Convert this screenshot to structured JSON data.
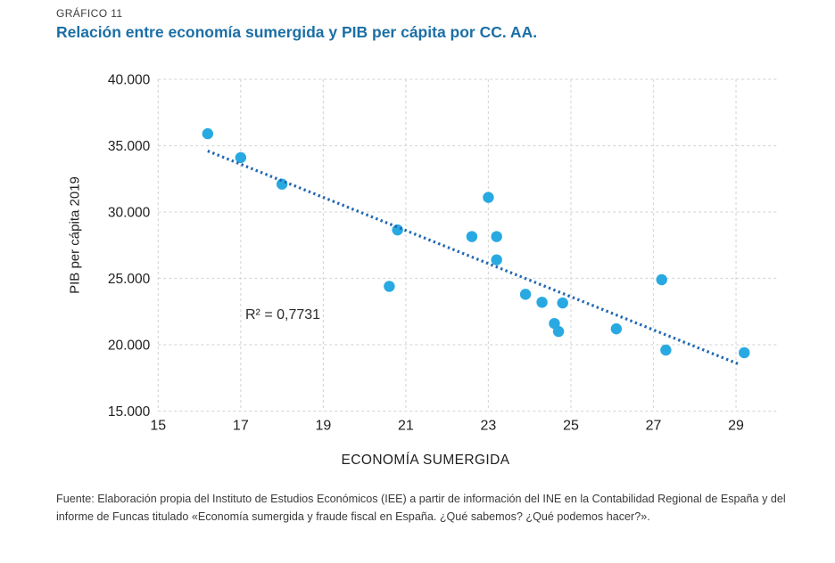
{
  "header": {
    "kicker": "GRÁFICO 11",
    "title": "Relación entre economía sumergida y PIB per cápita por CC. AA."
  },
  "chart_data": {
    "type": "scatter",
    "title": "Relación entre economía sumergida y PIB per cápita por CC. AA.",
    "xlabel": "ECONOMÍA SUMERGIDA",
    "ylabel": "PIB per cápita 2019",
    "xlim": [
      15,
      30
    ],
    "ylim": [
      15000,
      40000
    ],
    "grid": true,
    "legend": false,
    "x_ticks": [
      15,
      17,
      19,
      21,
      23,
      25,
      27,
      29
    ],
    "x_tick_labels": [
      "15",
      "17",
      "19",
      "21",
      "23",
      "25",
      "27",
      "29"
    ],
    "y_ticks": [
      15000,
      20000,
      25000,
      30000,
      35000,
      40000
    ],
    "y_tick_labels": [
      "15.000",
      "20.000",
      "25.000",
      "30.000",
      "35.000",
      "40.000"
    ],
    "points": [
      [
        16.2,
        35900
      ],
      [
        17.0,
        34100
      ],
      [
        18.0,
        32100
      ],
      [
        20.6,
        24400
      ],
      [
        20.8,
        28650
      ],
      [
        22.6,
        28150
      ],
      [
        23.0,
        31100
      ],
      [
        23.2,
        28150
      ],
      [
        23.2,
        26400
      ],
      [
        23.9,
        23800
      ],
      [
        24.3,
        23200
      ],
      [
        24.6,
        21600
      ],
      [
        24.7,
        21000
      ],
      [
        24.8,
        23150
      ],
      [
        26.1,
        21200
      ],
      [
        27.2,
        24900
      ],
      [
        27.3,
        19600
      ],
      [
        29.2,
        19400
      ]
    ],
    "trendline": {
      "x1": 16.2,
      "y1": 34600,
      "x2": 29.1,
      "y2": 18500
    },
    "annotation": {
      "r2_label": "R² = 0,7731"
    },
    "colors": {
      "point": "#29A9E1",
      "trend": "#2268B2",
      "grid": "#d9d9d9",
      "tick_text": "#1f1f1f",
      "title_blue": "#1c6fa5"
    }
  },
  "footer": {
    "lines": [
      "Fuente: Elaboración propia del Instituto de Estudios Económicos (IEE) a partir de información del INE en la Contabilidad Regional de España y del",
      "informe de Funcas titulado «Economía sumergida y fraude fiscal en España. ¿Qué sabemos? ¿Qué podemos hacer?»."
    ]
  }
}
